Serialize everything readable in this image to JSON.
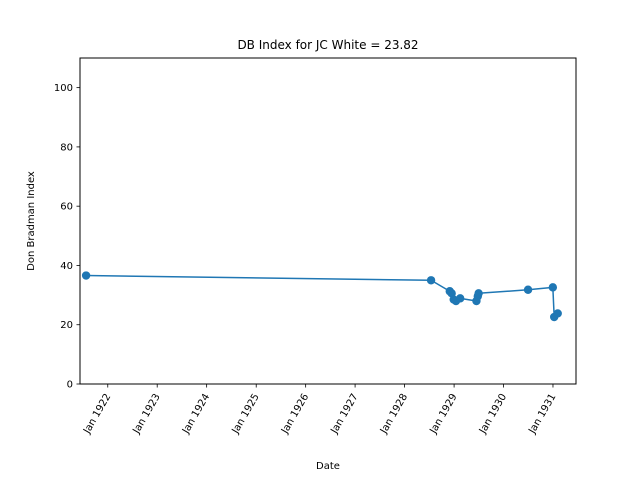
{
  "chart_data": {
    "type": "line",
    "title": "DB Index for JC White = 23.82",
    "xlabel": "Date",
    "ylabel": "Don Bradman Index",
    "ylim": [
      0,
      110
    ],
    "xlim": [
      "1921-06-10",
      "1931-06-20"
    ],
    "y_ticks": [
      0,
      20,
      40,
      60,
      80,
      100
    ],
    "x_ticks": [
      {
        "date": "1922-01-01",
        "label": "Jan 1922"
      },
      {
        "date": "1923-01-01",
        "label": "Jan 1923"
      },
      {
        "date": "1924-01-01",
        "label": "Jan 1924"
      },
      {
        "date": "1925-01-01",
        "label": "Jan 1925"
      },
      {
        "date": "1926-01-01",
        "label": "Jan 1926"
      },
      {
        "date": "1927-01-01",
        "label": "Jan 1927"
      },
      {
        "date": "1928-01-01",
        "label": "Jan 1928"
      },
      {
        "date": "1929-01-01",
        "label": "Jan 1929"
      },
      {
        "date": "1930-01-01",
        "label": "Jan 1930"
      },
      {
        "date": "1931-01-01",
        "label": "Jan 1931"
      }
    ],
    "grid": false,
    "series": [
      {
        "color": "#1f77b4",
        "marker": "circle",
        "points": [
          {
            "x": "1921-07-25",
            "y": 36.6
          },
          {
            "x": "1928-07-15",
            "y": 35.0
          },
          {
            "x": "1928-11-30",
            "y": 31.3
          },
          {
            "x": "1928-12-14",
            "y": 30.6
          },
          {
            "x": "1928-12-29",
            "y": 28.5
          },
          {
            "x": "1929-01-15",
            "y": 28.0
          },
          {
            "x": "1929-02-15",
            "y": 28.9
          },
          {
            "x": "1929-06-15",
            "y": 28.0
          },
          {
            "x": "1929-06-25",
            "y": 29.6
          },
          {
            "x": "1929-07-01",
            "y": 30.6
          },
          {
            "x": "1930-07-01",
            "y": 31.8
          },
          {
            "x": "1930-12-31",
            "y": 32.6
          },
          {
            "x": "1931-01-10",
            "y": 22.6
          },
          {
            "x": "1931-02-05",
            "y": 23.8
          }
        ]
      }
    ]
  }
}
